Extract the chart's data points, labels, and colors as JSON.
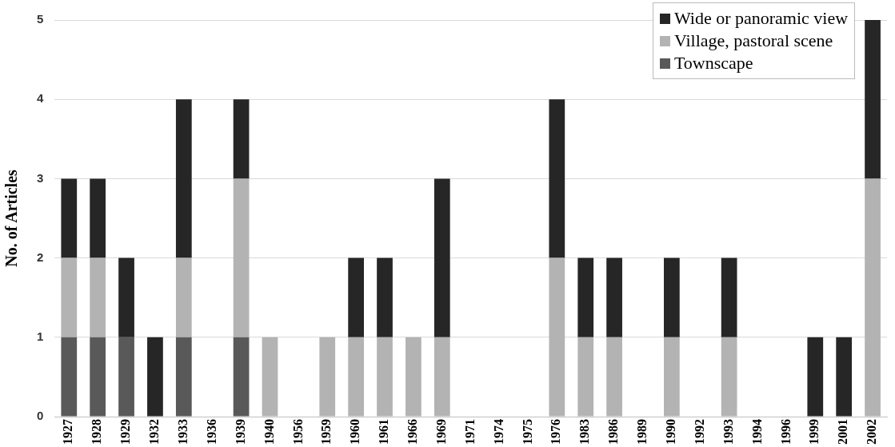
{
  "chart_data": {
    "type": "bar",
    "stacked": true,
    "ylabel": "No. of Articles",
    "categories": [
      "1927",
      "1928",
      "1929",
      "1932",
      "1933",
      "1936",
      "1939",
      "1940",
      "1956",
      "1959",
      "1960",
      "1961",
      "1966",
      "1969",
      "1971",
      "1974",
      "1975",
      "1976",
      "1983",
      "1986",
      "1989",
      "1990",
      "1992",
      "1993",
      "1994",
      "1996",
      "1999",
      "2001",
      "2002"
    ],
    "series": [
      {
        "name": "Townscape",
        "color": "#595959",
        "values": [
          1,
          1,
          1,
          0,
          1,
          0,
          1,
          0,
          0,
          0,
          0,
          0,
          0,
          0,
          0,
          0,
          0,
          0,
          0,
          0,
          0,
          0,
          0,
          0,
          0,
          0,
          0,
          0,
          0
        ]
      },
      {
        "name": "Village, pastoral scene",
        "color": "#b3b3b3",
        "values": [
          1,
          1,
          0,
          0,
          1,
          0,
          2,
          1,
          0,
          1,
          1,
          1,
          1,
          1,
          0,
          0,
          0,
          2,
          1,
          1,
          0,
          1,
          0,
          1,
          0,
          0,
          0,
          0,
          3
        ]
      },
      {
        "name": "Wide or panoramic view",
        "color": "#262626",
        "values": [
          1,
          1,
          1,
          1,
          2,
          0,
          1,
          0,
          0,
          0,
          1,
          1,
          0,
          2,
          0,
          0,
          0,
          2,
          1,
          1,
          0,
          1,
          0,
          1,
          0,
          0,
          1,
          1,
          2
        ]
      }
    ],
    "ylim": [
      0,
      5
    ],
    "yticks": [
      0,
      1,
      2,
      3,
      4,
      5
    ],
    "grid": "y",
    "legend": "top right"
  }
}
